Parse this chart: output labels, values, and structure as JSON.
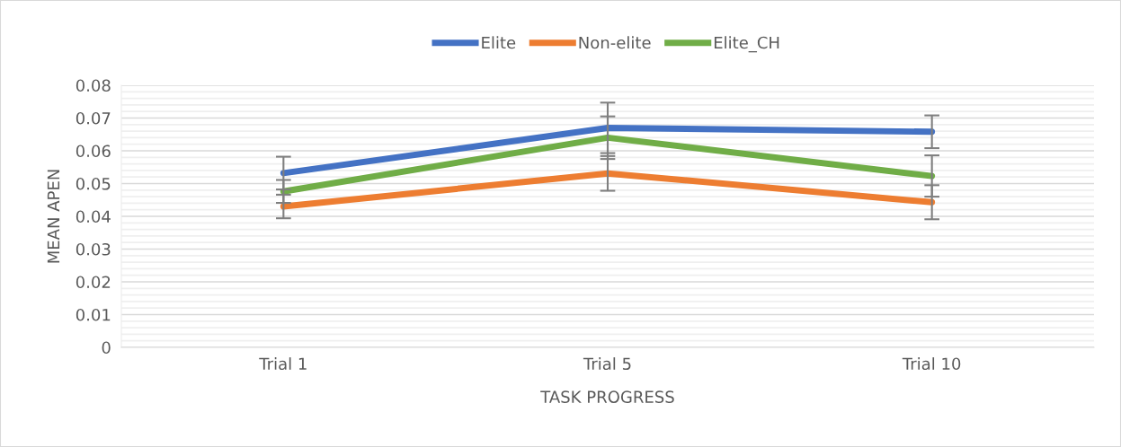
{
  "chart_data": {
    "type": "line",
    "xlabel": "TASK PROGRESS",
    "ylabel": "MEAN APEN",
    "categories": [
      "Trial 1",
      "Trial 5",
      "Trial 10"
    ],
    "series": [
      {
        "name": "Elite",
        "color": "#4472c4",
        "values": [
          0.0532,
          0.067,
          0.0658
        ],
        "errors": [
          0.005,
          0.0077,
          0.005
        ]
      },
      {
        "name": "Non-elite",
        "color": "#ed7d31",
        "values": [
          0.043,
          0.0531,
          0.0443
        ],
        "errors": [
          0.0036,
          0.0053,
          0.0052
        ]
      },
      {
        "name": "Elite_CH",
        "color": "#70ad47",
        "values": [
          0.0476,
          0.064,
          0.0523
        ],
        "errors": [
          0.0035,
          0.0065,
          0.0063
        ]
      }
    ],
    "ylim": [
      0,
      0.08
    ],
    "yticks": [
      0,
      {
        "value": 0.002,
        "label": null
      },
      {
        "value": 0.004,
        "label": null
      },
      {
        "value": 0.006,
        "label": null
      },
      {
        "value": 0.008,
        "label": null
      },
      {
        "value": 0.01,
        "label": "0.01"
      },
      {
        "value": 0.012,
        "label": null
      },
      {
        "value": 0.014,
        "label": null
      },
      {
        "value": 0.016,
        "label": null
      },
      {
        "value": 0.018,
        "label": null
      },
      {
        "value": 0.02,
        "label": "0.02"
      },
      {
        "value": 0.022,
        "label": null
      },
      {
        "value": 0.024,
        "label": null
      },
      {
        "value": 0.026,
        "label": null
      },
      {
        "value": 0.028,
        "label": null
      },
      {
        "value": 0.03,
        "label": "0.03"
      },
      {
        "value": 0.032,
        "label": null
      },
      {
        "value": 0.034,
        "label": null
      },
      {
        "value": 0.036,
        "label": null
      },
      {
        "value": 0.038,
        "label": null
      },
      {
        "value": 0.04,
        "label": "0.04"
      },
      {
        "value": 0.042,
        "label": null
      },
      {
        "value": 0.044,
        "label": null
      },
      {
        "value": 0.046,
        "label": null
      },
      {
        "value": 0.048,
        "label": null
      },
      {
        "value": 0.05,
        "label": "0.05"
      },
      {
        "value": 0.052,
        "label": null
      },
      {
        "value": 0.054,
        "label": null
      },
      {
        "value": 0.056,
        "label": null
      },
      {
        "value": 0.058,
        "label": null
      },
      {
        "value": 0.06,
        "label": "0.06"
      },
      {
        "value": 0.062,
        "label": null
      },
      {
        "value": 0.064,
        "label": null
      },
      {
        "value": 0.066,
        "label": null
      },
      {
        "value": 0.068,
        "label": null
      },
      {
        "value": 0.07,
        "label": "0.07"
      },
      {
        "value": 0.072,
        "label": null
      },
      {
        "value": 0.074,
        "label": null
      },
      {
        "value": 0.076,
        "label": null
      },
      {
        "value": 0.078,
        "label": null
      },
      {
        "value": 0.08,
        "label": "0.08"
      }
    ],
    "grid": "y",
    "legend": "top",
    "marker": "none",
    "line_style": "solid"
  }
}
